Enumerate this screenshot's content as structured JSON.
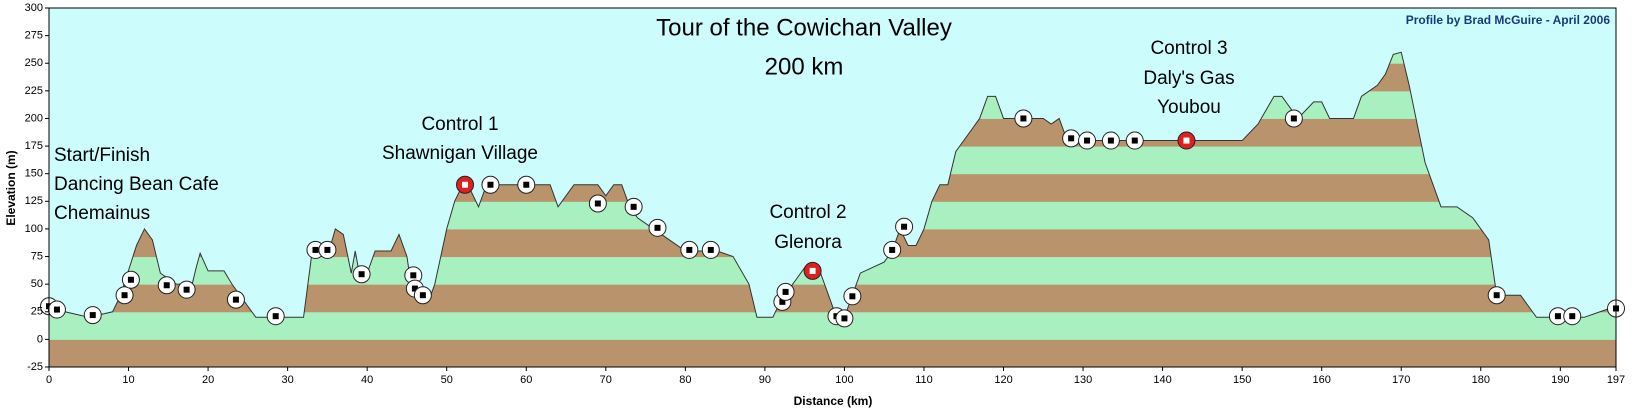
{
  "chart_data": {
    "type": "elevation-profile",
    "title": "Tour of the Cowichan Valley",
    "subtitle": "200 km",
    "credit": "Profile by Brad McGuire - April 2006",
    "x_label": "Distance  (km)",
    "y_label": "Elevation (m)",
    "xlim": [
      0,
      197
    ],
    "ylim": [
      -25,
      300
    ],
    "xticks": [
      0,
      10,
      20,
      30,
      40,
      50,
      60,
      70,
      80,
      90,
      100,
      110,
      120,
      130,
      140,
      150,
      160,
      170,
      180,
      190,
      197
    ],
    "yticks": [
      -25,
      0,
      25,
      50,
      75,
      100,
      125,
      150,
      175,
      200,
      225,
      250,
      275,
      300
    ],
    "band_size": 25,
    "band_colors": [
      "#b8936b",
      "#a8f0c0"
    ],
    "background": "#ccfcfc",
    "x": [
      0,
      2,
      5,
      8,
      9,
      11,
      12,
      13,
      14,
      16,
      18,
      18.5,
      19,
      20,
      22,
      23,
      25,
      26,
      30,
      32,
      33,
      35,
      36,
      37,
      38,
      38.5,
      39,
      40,
      41,
      43,
      44,
      45,
      45.5,
      47,
      48,
      48.5,
      50,
      51,
      52,
      53,
      54,
      55,
      60,
      63,
      64,
      66,
      69,
      70,
      71,
      72,
      73,
      74,
      76,
      78,
      80,
      84,
      86,
      88,
      89,
      91,
      92,
      94,
      95,
      97,
      98,
      99,
      100,
      101,
      102,
      105,
      106,
      107,
      108,
      109,
      110,
      111,
      112,
      113,
      114,
      116,
      117,
      118,
      119,
      120,
      122,
      125,
      126,
      127,
      128,
      130,
      150,
      152,
      154,
      155,
      157,
      159,
      160,
      161,
      163,
      164,
      165,
      167,
      168,
      169,
      170,
      171,
      173,
      175,
      177,
      179,
      181,
      182,
      185,
      186,
      187,
      190,
      192,
      193,
      195,
      197
    ],
    "values": [
      30,
      25,
      20,
      25,
      40,
      85,
      100,
      90,
      60,
      50,
      50,
      65,
      78,
      62,
      62,
      50,
      30,
      20,
      20,
      20,
      75,
      75,
      100,
      95,
      60,
      80,
      60,
      60,
      80,
      80,
      95,
      75,
      50,
      40,
      40,
      50,
      100,
      125,
      140,
      135,
      120,
      140,
      140,
      140,
      120,
      140,
      140,
      130,
      140,
      140,
      120,
      110,
      100,
      90,
      80,
      80,
      75,
      50,
      20,
      20,
      35,
      55,
      65,
      60,
      40,
      20,
      20,
      40,
      60,
      70,
      80,
      100,
      85,
      85,
      100,
      125,
      140,
      140,
      170,
      190,
      200,
      220,
      220,
      200,
      200,
      200,
      195,
      200,
      180,
      180,
      180,
      195,
      220,
      220,
      200,
      215,
      215,
      200,
      200,
      200,
      220,
      230,
      240,
      258,
      260,
      230,
      160,
      120,
      120,
      110,
      90,
      40,
      40,
      30,
      20,
      20,
      20,
      20,
      25,
      30
    ],
    "waypoints": [
      {
        "x": 0,
        "y": 30,
        "color": "#ffffff"
      },
      {
        "x": 1,
        "y": 27,
        "color": "#ffffff"
      },
      {
        "x": 5.5,
        "y": 22,
        "color": "#ffffff"
      },
      {
        "x": 9.5,
        "y": 40,
        "color": "#ffffff"
      },
      {
        "x": 10.3,
        "y": 54,
        "color": "#ffffff"
      },
      {
        "x": 14.8,
        "y": 49,
        "color": "#ffffff"
      },
      {
        "x": 17.3,
        "y": 45,
        "color": "#ffffff"
      },
      {
        "x": 23.5,
        "y": 36,
        "color": "#ffffff"
      },
      {
        "x": 28.5,
        "y": 21,
        "color": "#ffffff"
      },
      {
        "x": 33.5,
        "y": 81,
        "color": "#ffffff"
      },
      {
        "x": 35,
        "y": 81,
        "color": "#ffffff"
      },
      {
        "x": 39.3,
        "y": 59,
        "color": "#ffffff"
      },
      {
        "x": 45.8,
        "y": 58,
        "color": "#ffffff"
      },
      {
        "x": 46,
        "y": 46,
        "color": "#ffffff"
      },
      {
        "x": 47,
        "y": 40,
        "color": "#ffffff"
      },
      {
        "x": 52.3,
        "y": 140,
        "color": "#e02020"
      },
      {
        "x": 55.5,
        "y": 140,
        "color": "#ffffff"
      },
      {
        "x": 60,
        "y": 140,
        "color": "#ffffff"
      },
      {
        "x": 69,
        "y": 123,
        "color": "#ffffff"
      },
      {
        "x": 73.5,
        "y": 120,
        "color": "#ffffff"
      },
      {
        "x": 76.5,
        "y": 101,
        "color": "#ffffff"
      },
      {
        "x": 80.5,
        "y": 81,
        "color": "#ffffff"
      },
      {
        "x": 83.2,
        "y": 81,
        "color": "#ffffff"
      },
      {
        "x": 92.2,
        "y": 34,
        "color": "#ffffff"
      },
      {
        "x": 92.6,
        "y": 43,
        "color": "#ffffff"
      },
      {
        "x": 96,
        "y": 62,
        "color": "#e02020"
      },
      {
        "x": 99,
        "y": 21,
        "color": "#ffffff"
      },
      {
        "x": 100,
        "y": 19,
        "color": "#ffffff"
      },
      {
        "x": 101,
        "y": 39,
        "color": "#ffffff"
      },
      {
        "x": 106,
        "y": 81,
        "color": "#ffffff"
      },
      {
        "x": 107.5,
        "y": 102,
        "color": "#ffffff"
      },
      {
        "x": 122.5,
        "y": 200,
        "color": "#ffffff"
      },
      {
        "x": 128.5,
        "y": 182,
        "color": "#ffffff"
      },
      {
        "x": 130.5,
        "y": 180,
        "color": "#ffffff"
      },
      {
        "x": 133.5,
        "y": 180,
        "color": "#ffffff"
      },
      {
        "x": 136.5,
        "y": 180,
        "color": "#ffffff"
      },
      {
        "x": 143,
        "y": 180,
        "color": "#e02020"
      },
      {
        "x": 156.5,
        "y": 200,
        "color": "#ffffff"
      },
      {
        "x": 182,
        "y": 40,
        "color": "#ffffff"
      },
      {
        "x": 189.7,
        "y": 21,
        "color": "#ffffff"
      },
      {
        "x": 191.5,
        "y": 21,
        "color": "#ffffff"
      },
      {
        "x": 197,
        "y": 28,
        "color": "#ffffff"
      }
    ],
    "annotations": [
      [
        "Start/Finish",
        "Dancing Bean Cafe",
        "Chemainus"
      ],
      [
        "Control 1",
        "Shawnigan Village"
      ],
      [
        "Control 2",
        "Glenora"
      ],
      [
        "Control 3",
        "Daly's Gas",
        "Youbou"
      ]
    ]
  }
}
